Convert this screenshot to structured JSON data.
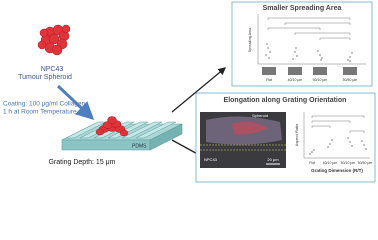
{
  "spheroid_label": [
    "NPC43",
    "Tumour Spheroid"
  ],
  "coating": [
    "Coating: 100 μg/ml Collagen",
    "1 h at Room Temperature"
  ],
  "substrate_label": "PDMS",
  "grating_depth": "Grating Depth: 15 μm",
  "panels": [
    {
      "title": "Smaller Spreading Area",
      "y_label": "Spreading Area",
      "x_labels": [
        "Flat",
        "40/10 μm",
        "50/10 μm",
        "50/50 μm"
      ]
    },
    {
      "title": "Elongation along Grating Orientation",
      "image_labels": [
        "NPC43",
        "Spheroid",
        "20 μm"
      ],
      "y_label": "Aspect Ratio",
      "x_labels": [
        "Flat",
        "40/10 μm",
        "50/10 μm",
        "50/50 μm"
      ],
      "x_title": "Grating Dimension (R/T)"
    }
  ]
}
